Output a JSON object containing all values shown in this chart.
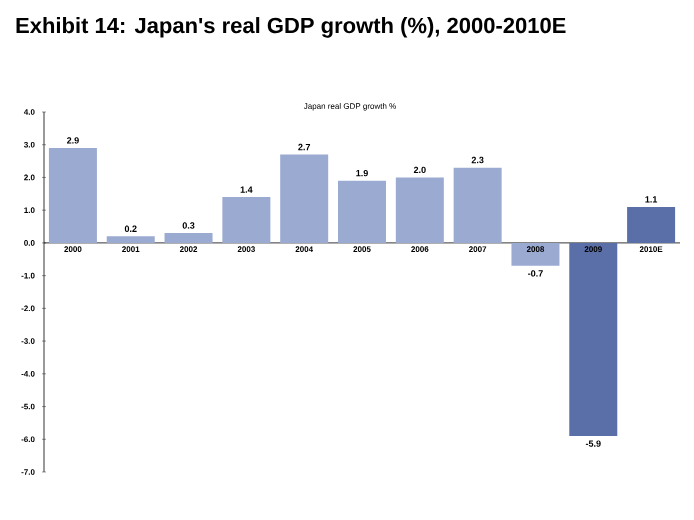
{
  "chart_data": {
    "type": "bar",
    "title": "Exhibit 14:  Japan's real GDP growth (%), 2000-2010E",
    "subtitle": "Japan real GDP growth %",
    "categories": [
      "2000",
      "2001",
      "2002",
      "2003",
      "2004",
      "2005",
      "2006",
      "2007",
      "2008",
      "2009",
      "2010E"
    ],
    "values": [
      2.9,
      0.2,
      0.3,
      1.4,
      2.7,
      1.9,
      2.0,
      2.3,
      -0.7,
      -5.9,
      1.1
    ],
    "colors": [
      "#9aaad0",
      "#9aaad0",
      "#9aaad0",
      "#9aaad0",
      "#9aaad0",
      "#9aaad0",
      "#9aaad0",
      "#9aaad0",
      "#9aaad0",
      "#5a6ea8",
      "#5a6ea8"
    ],
    "ylim": [
      -7,
      4
    ],
    "yticks": [
      {
        "value": 4,
        "label": "4.0"
      },
      {
        "value": 3,
        "label": "3.0"
      },
      {
        "value": 2,
        "label": "2.0"
      },
      {
        "value": 1,
        "label": "1.0"
      },
      {
        "value": 0,
        "label": "0.0"
      },
      {
        "value": -1,
        "label": "-1.0"
      },
      {
        "value": -2,
        "label": "-2.0"
      },
      {
        "value": -3,
        "label": "-3.0"
      },
      {
        "value": -4,
        "label": "-4.0"
      },
      {
        "value": -5,
        "label": "-5.0"
      },
      {
        "value": -6,
        "label": "-6.0"
      },
      {
        "value": -7,
        "label": "-7.0"
      }
    ],
    "value_labels": [
      "2.9",
      "0.2",
      "0.3",
      "1.4",
      "2.7",
      "1.9",
      "2.0",
      "2.3",
      "-0.7",
      "-5.9",
      "1.1"
    ],
    "grid": false
  }
}
